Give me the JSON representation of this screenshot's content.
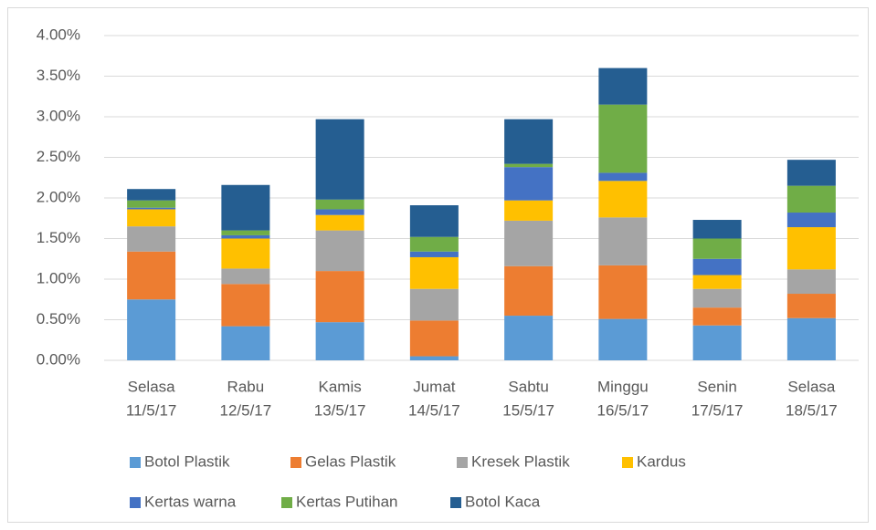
{
  "chart_data": {
    "type": "stacked_bar",
    "categories": [
      [
        "Selasa",
        "11/5/17"
      ],
      [
        "Rabu",
        "12/5/17"
      ],
      [
        "Kamis",
        "13/5/17"
      ],
      [
        "Jumat",
        "14/5/17"
      ],
      [
        "Sabtu",
        "15/5/17"
      ],
      [
        "Minggu",
        "16/5/17"
      ],
      [
        "Senin",
        "17/5/17"
      ],
      [
        "Selasa",
        "18/5/17"
      ]
    ],
    "series": [
      {
        "name": "Botol Plastik",
        "color": "#5b9bd5",
        "values": [
          0.75,
          0.42,
          0.47,
          0.05,
          0.55,
          0.51,
          0.43,
          0.52
        ]
      },
      {
        "name": "Gelas Plastik",
        "color": "#ed7d31",
        "values": [
          0.59,
          0.52,
          0.63,
          0.44,
          0.61,
          0.66,
          0.22,
          0.3
        ]
      },
      {
        "name": "Kresek Plastik",
        "color": "#a5a5a5",
        "values": [
          0.31,
          0.19,
          0.5,
          0.39,
          0.56,
          0.59,
          0.23,
          0.3
        ]
      },
      {
        "name": "Kardus",
        "color": "#ffc000",
        "values": [
          0.21,
          0.37,
          0.19,
          0.39,
          0.25,
          0.45,
          0.17,
          0.52
        ]
      },
      {
        "name": "Kertas warna",
        "color": "#4472c4",
        "values": [
          0.02,
          0.04,
          0.07,
          0.07,
          0.41,
          0.1,
          0.2,
          0.18
        ]
      },
      {
        "name": "Kertas Putihan",
        "color": "#70ad47",
        "values": [
          0.09,
          0.06,
          0.12,
          0.18,
          0.04,
          0.84,
          0.25,
          0.33
        ]
      },
      {
        "name": "Botol Kaca",
        "color": "#255e91",
        "values": [
          0.14,
          0.56,
          0.99,
          0.39,
          0.55,
          0.45,
          0.23,
          0.32
        ]
      }
    ],
    "ylim": [
      0,
      4
    ],
    "yticks": [
      {
        "value": 0,
        "label": "0.00%"
      },
      {
        "value": 0.5,
        "label": "0.50%"
      },
      {
        "value": 1,
        "label": "1.00%"
      },
      {
        "value": 1.5,
        "label": "1.50%"
      },
      {
        "value": 2,
        "label": "2.00%"
      },
      {
        "value": 2.5,
        "label": "2.50%"
      },
      {
        "value": 3,
        "label": "3.00%"
      },
      {
        "value": 3.5,
        "label": "3.50%"
      },
      {
        "value": 4,
        "label": "4.00%"
      }
    ],
    "grid": true,
    "legend": "bottom"
  }
}
